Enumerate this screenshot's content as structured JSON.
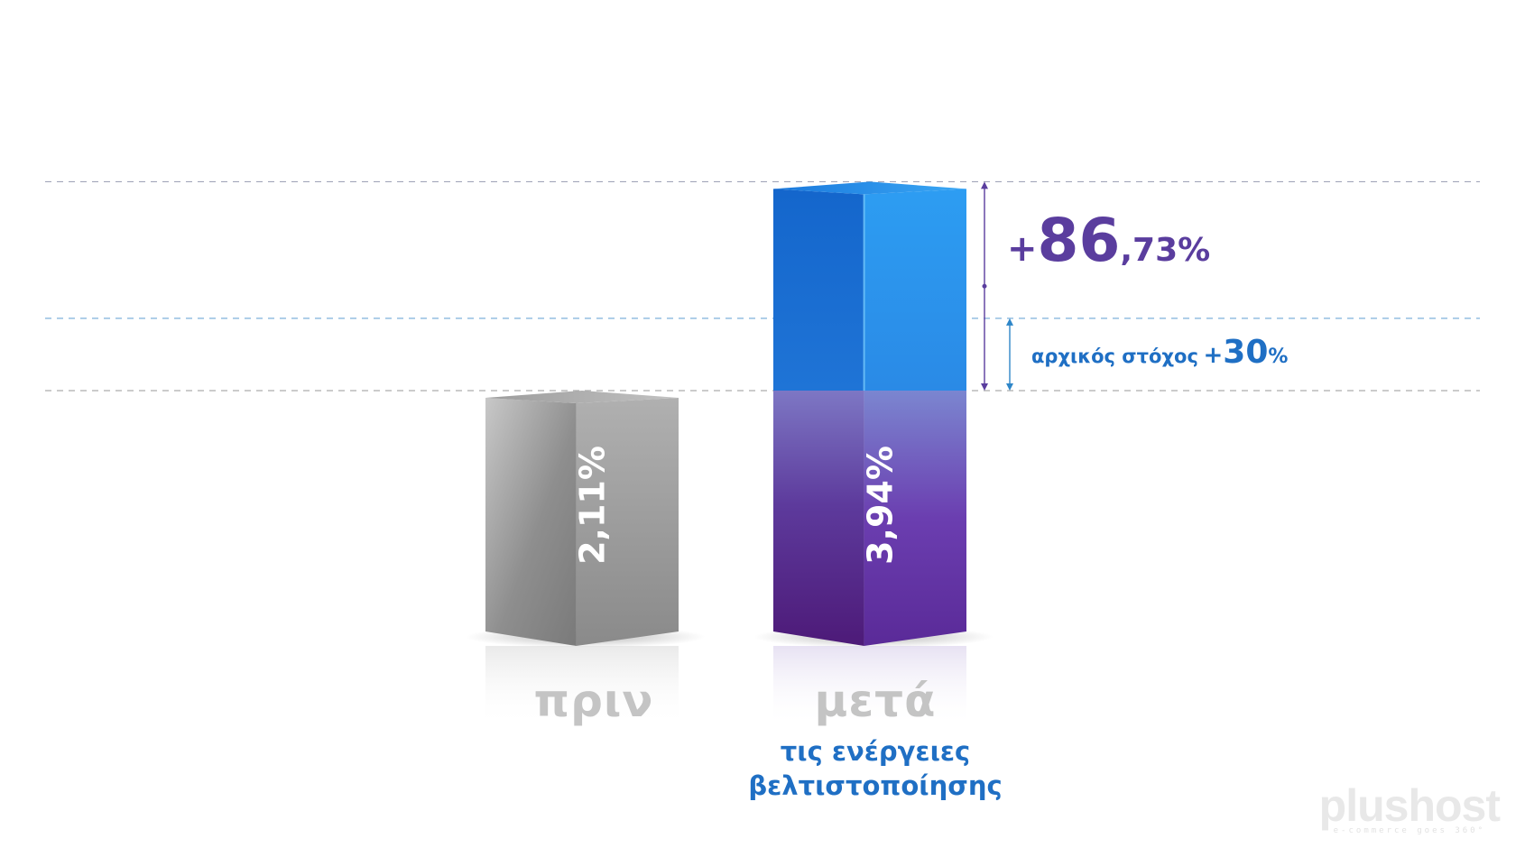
{
  "chart_data": {
    "type": "bar",
    "categories": [
      "πριν",
      "μετά"
    ],
    "values": [
      2.11,
      3.94
    ],
    "value_labels": [
      "2,11%",
      "3,94%"
    ],
    "category_sublabel": [
      "τις ενέργειες",
      "βελτιστοποίησης"
    ],
    "annotations": {
      "increase": {
        "sign": "+",
        "integer": "86",
        "decimal": ",73%",
        "value": 86.73
      },
      "goal": {
        "text": "αρχικός στόχος",
        "sign": "+",
        "number": "30",
        "unit": "%",
        "value": 30
      }
    },
    "ylim": [
      0,
      4.5
    ],
    "grid": true,
    "colors": {
      "before": "#9a9a9a",
      "after_base": "#5b2a8c",
      "after_gain": "#1b7fdc",
      "increase_text": "#5a3d9e",
      "goal_text": "#1f6fc4"
    }
  },
  "logo": {
    "main": "plushost",
    "sub": "e-commerce goes 360°"
  }
}
